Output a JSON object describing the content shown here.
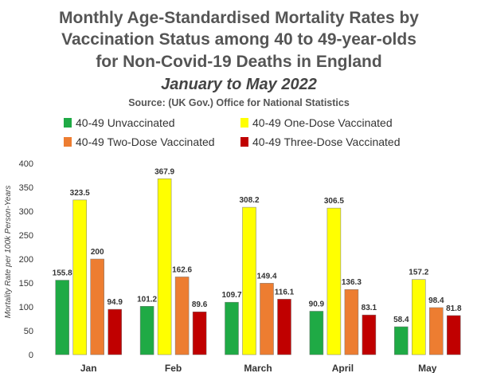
{
  "chart_data": {
    "type": "bar",
    "title_lines": [
      "Monthly Age-Standardised Mortality Rates by",
      "Vaccination Status among 40 to 49-year-olds",
      "for Non-Covid-19 Deaths in England"
    ],
    "subtitle": "January to May 2022",
    "source": "Source: (UK Gov.) Office for National Statistics",
    "xlabel": "",
    "ylabel": "Mortality Rate per 100k Person-Years",
    "ylim": [
      0,
      400
    ],
    "yticks": [
      "0",
      "50",
      "100",
      "150",
      "200",
      "250",
      "300",
      "350",
      "400"
    ],
    "grid": false,
    "legend_position": "top",
    "categories": [
      "Jan",
      "Feb",
      "March",
      "April",
      "May"
    ],
    "series": [
      {
        "name": "40-49 Unvaccinated",
        "color": "#1faa45",
        "values": [
          155.8,
          101.2,
          109.7,
          90.9,
          58.4
        ],
        "labels": [
          "155.8",
          "101.2",
          "109.7",
          "90.9",
          "58.4"
        ]
      },
      {
        "name": "40-49 One-Dose Vaccinated",
        "color": "#ffff00",
        "values": [
          323.5,
          367.9,
          308.2,
          306.5,
          157.2
        ],
        "labels": [
          "323.5",
          "367.9",
          "308.2",
          "306.5",
          "157.2"
        ]
      },
      {
        "name": "40-49 Two-Dose Vaccinated",
        "color": "#ed7d31",
        "values": [
          200,
          162.6,
          149.4,
          136.3,
          98.4
        ],
        "labels": [
          "200",
          "162.6",
          "149.4",
          "136.3",
          "98.4"
        ]
      },
      {
        "name": "40-49 Three-Dose Vaccinated",
        "color": "#c00000",
        "values": [
          94.9,
          89.6,
          116.1,
          83.1,
          81.8
        ],
        "labels": [
          "94.9",
          "89.6",
          "116.1",
          "83.1",
          "81.8"
        ]
      }
    ]
  }
}
